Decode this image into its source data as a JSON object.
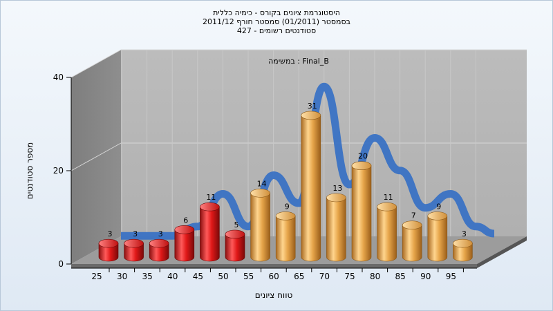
{
  "title_lines": [
    "היסטוגרמת ציונים בקורס - כימיה כללית",
    "בסמסטר  (01/2011)  סמסטר חורף 2011/12",
    "427 - סטודנטים רשומים"
  ],
  "chart_data": {
    "type": "bar",
    "subtitle": "במשימה : Final_B",
    "xlabel": "טווח ציונים",
    "ylabel": "מספר סטודנטים",
    "x_ticks": [
      "25",
      "30",
      "35",
      "40",
      "45",
      "50",
      "55",
      "60",
      "65",
      "70",
      "75",
      "80",
      "85",
      "90",
      "95"
    ],
    "y_ticks": [
      0,
      20,
      40
    ],
    "ylim": [
      0,
      40
    ],
    "grid": true,
    "values": [
      3,
      3,
      3,
      6,
      11,
      5,
      14,
      9,
      31,
      13,
      20,
      11,
      7,
      9,
      3
    ],
    "bar_colors": [
      "#e02020",
      "#e02020",
      "#e02020",
      "#e02020",
      "#e02020",
      "#e02020",
      "#e6a54a",
      "#e6a54a",
      "#e6a54a",
      "#e6a54a",
      "#e6a54a",
      "#e6a54a",
      "#e6a54a",
      "#e6a54a",
      "#e6a54a"
    ],
    "curve_color": "#3a72c4",
    "curve_values": [
      1,
      1,
      1,
      3,
      10,
      3,
      14,
      8,
      33,
      12,
      22,
      15,
      7,
      10,
      3
    ]
  }
}
